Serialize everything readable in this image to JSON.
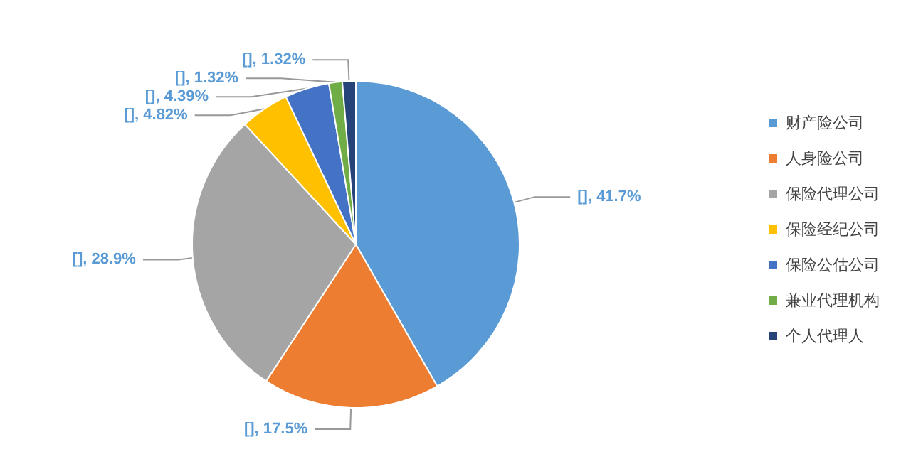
{
  "chart_data": {
    "type": "pie",
    "categories": [
      "财产险公司",
      "人身险公司",
      "保险代理公司",
      "保险经纪公司",
      "保险公估公司",
      "兼业代理机构",
      "个人代理人"
    ],
    "values": [
      41.7,
      17.5,
      28.9,
      4.82,
      4.39,
      1.32,
      1.32
    ],
    "value_labels": [
      "[], 41.7%",
      "[], 17.5%",
      "[], 28.9%",
      "[], 4.82%",
      "[], 4.39%",
      "[], 1.32%",
      "[], 1.32%"
    ],
    "colors": [
      "#5b9bd5",
      "#ed7d31",
      "#a5a5a5",
      "#ffc000",
      "#4472c4",
      "#70ad47",
      "#264478"
    ],
    "legend": "right"
  }
}
